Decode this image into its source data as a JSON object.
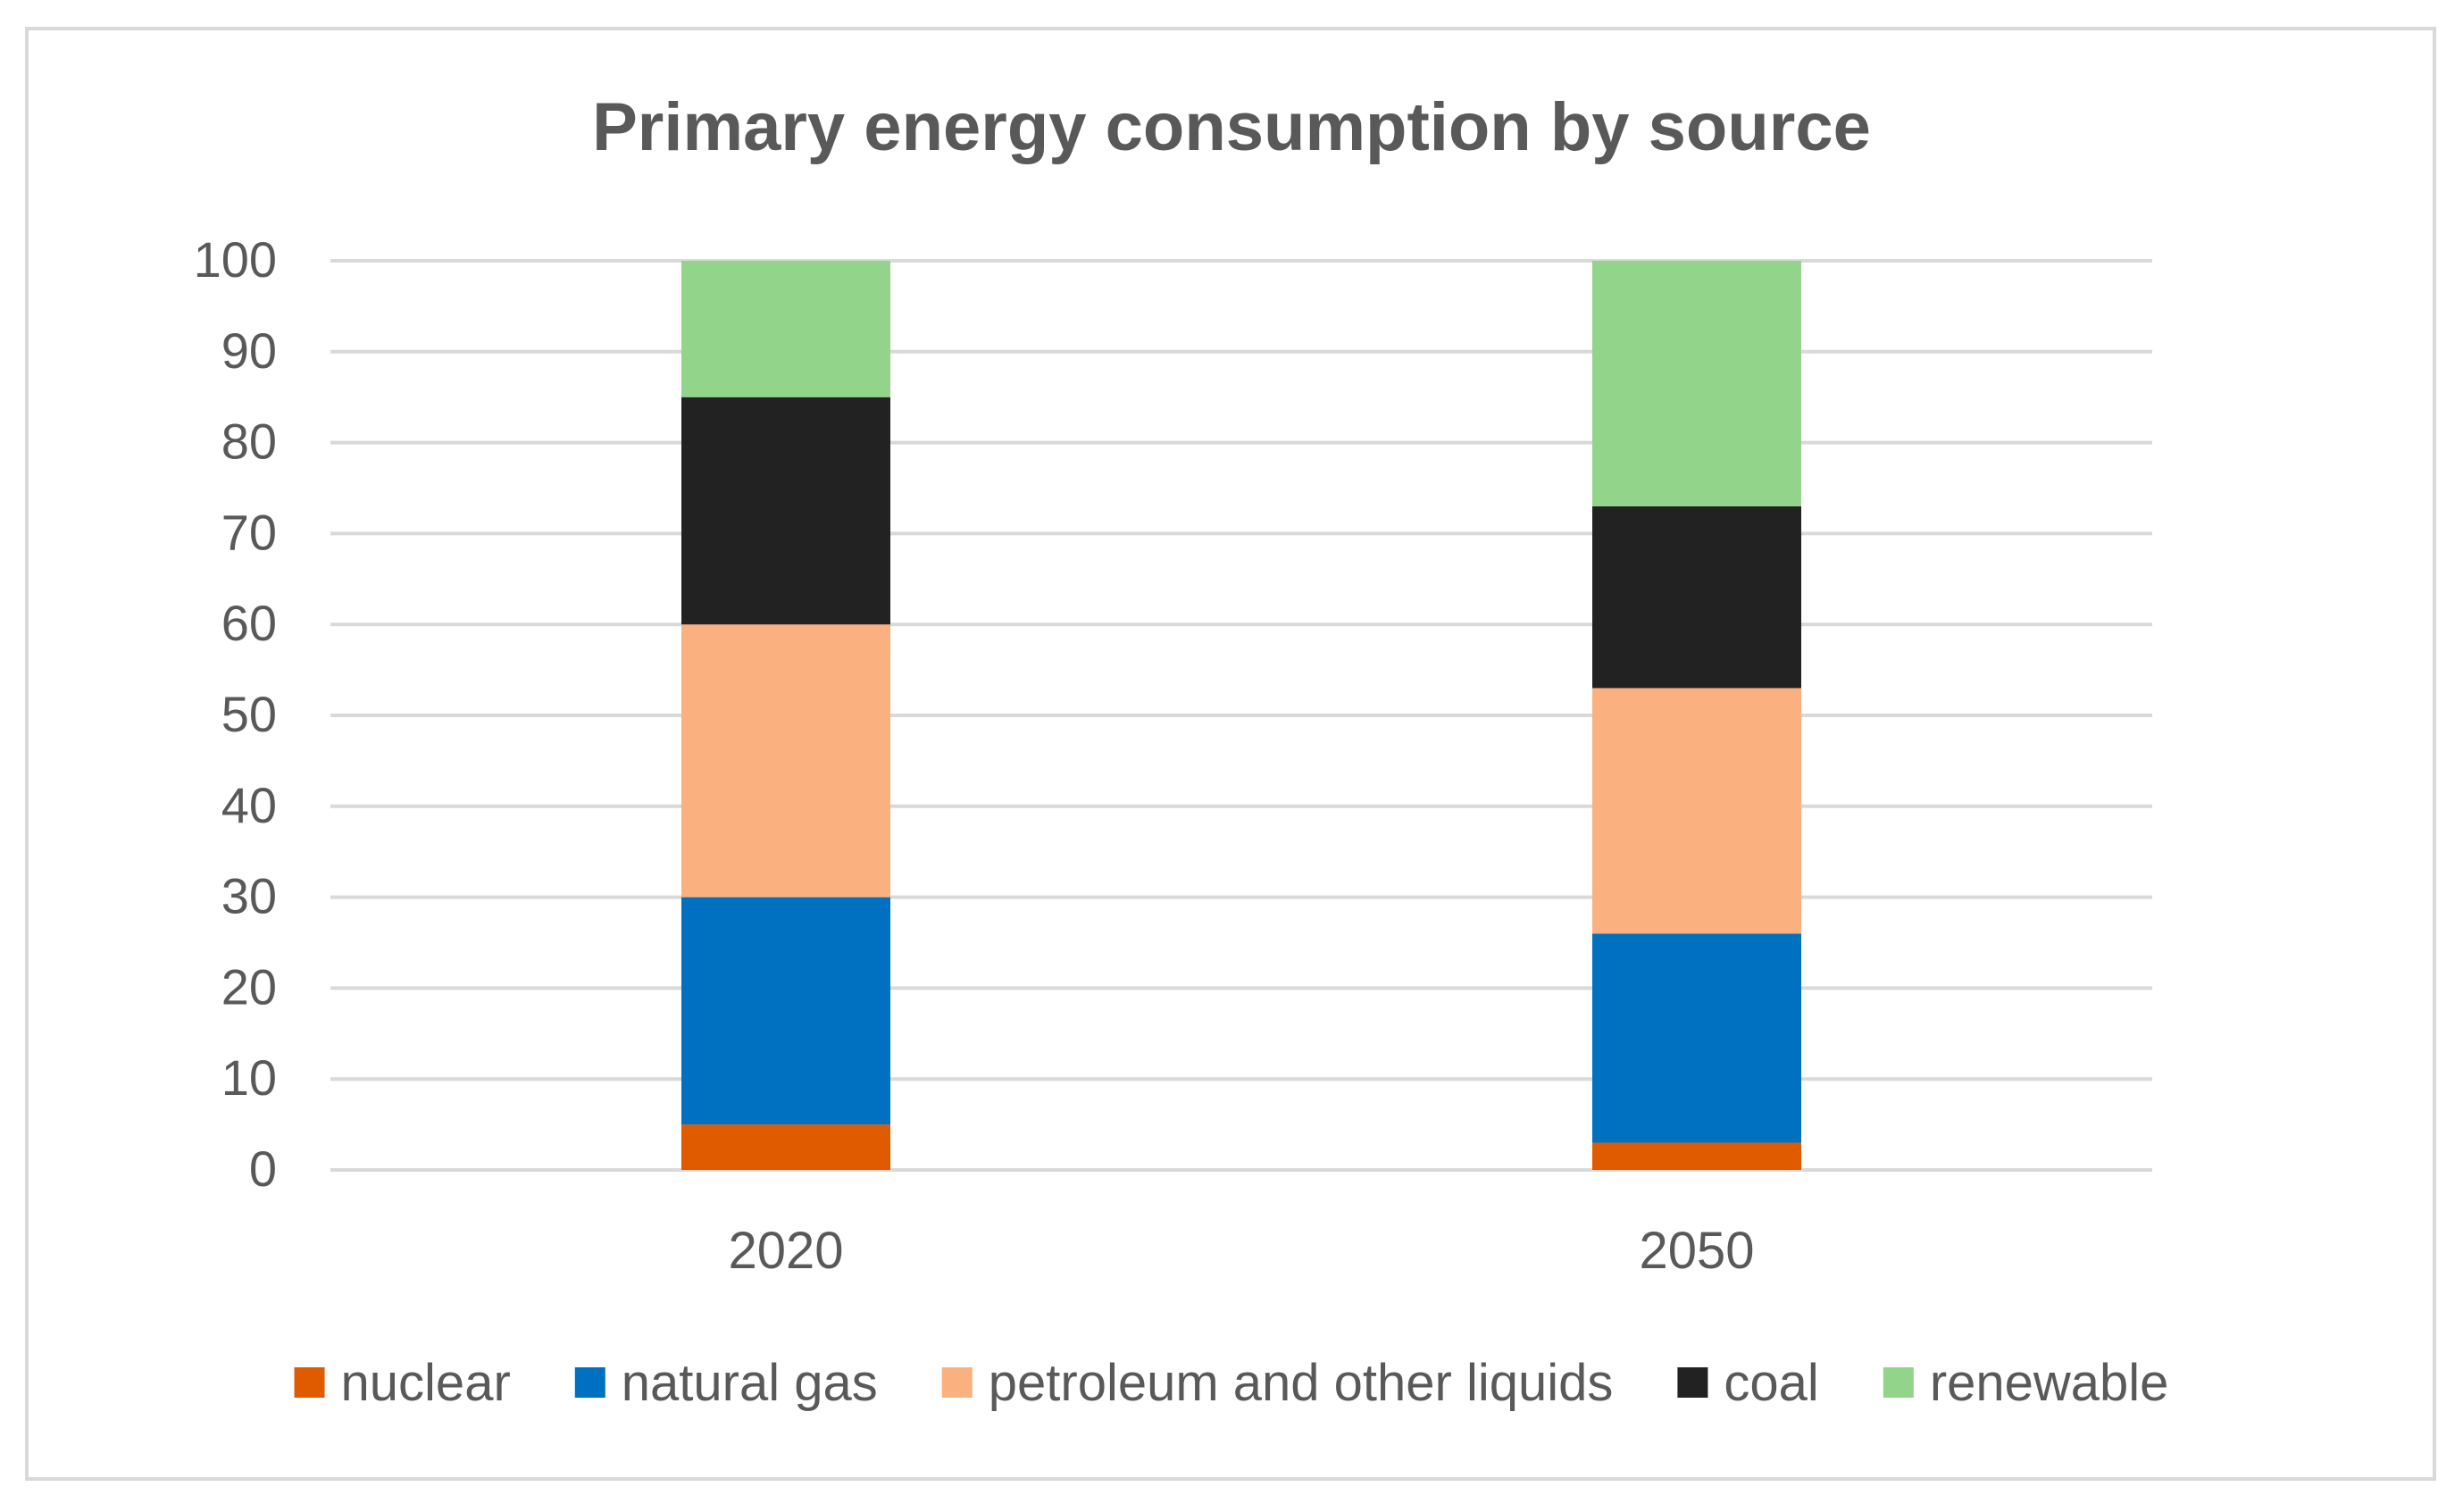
{
  "chart_data": {
    "type": "bar",
    "stacked": true,
    "title": "Primary energy consumption  by source",
    "xlabel": "",
    "ylabel": "",
    "categories": [
      "2020",
      "2050"
    ],
    "ylim": [
      0,
      100
    ],
    "yticks": [
      0,
      10,
      20,
      30,
      40,
      50,
      60,
      70,
      80,
      90,
      100
    ],
    "grid": true,
    "legend_position": "bottom",
    "series": [
      {
        "name": "nuclear",
        "color": "#e05a00",
        "values": [
          5,
          3
        ]
      },
      {
        "name": "natural gas",
        "color": "#0070c0",
        "values": [
          25,
          23
        ]
      },
      {
        "name": "petroleum and other liquids",
        "color": "#fbb07f",
        "values": [
          30,
          27
        ]
      },
      {
        "name": "coal",
        "color": "#222222",
        "values": [
          25,
          20
        ]
      },
      {
        "name": "renewable",
        "color": "#93d48b",
        "values": [
          15,
          27
        ]
      }
    ]
  }
}
